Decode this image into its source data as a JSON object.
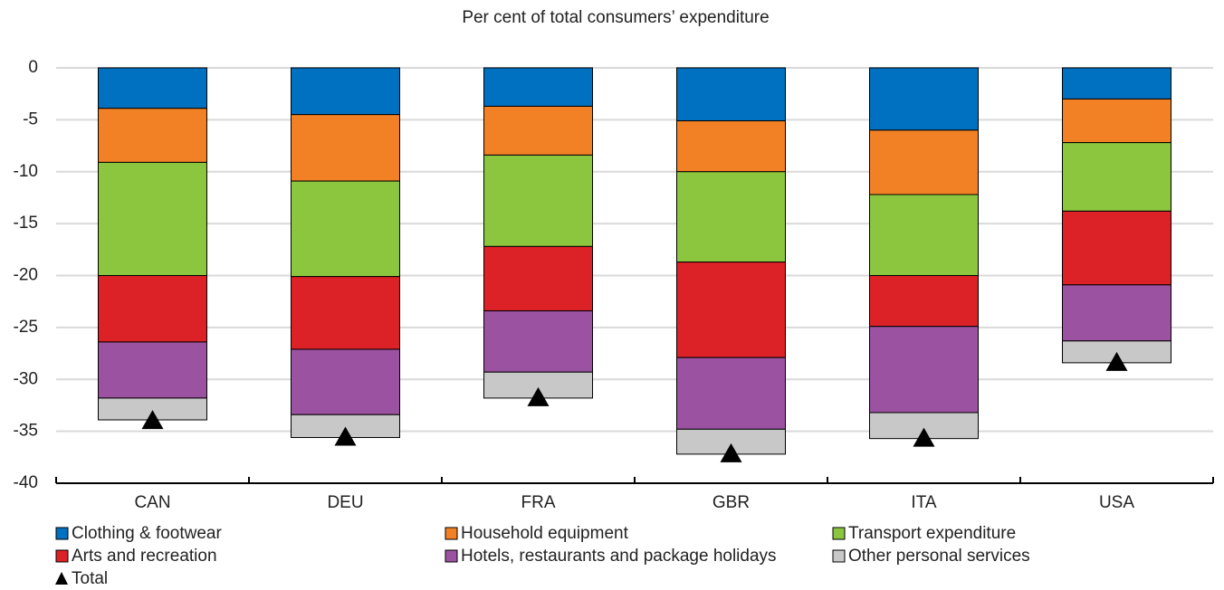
{
  "chart_data": {
    "type": "bar",
    "stacked": true,
    "title": "Per cent of total consumers’ expenditure",
    "categories": [
      "CAN",
      "DEU",
      "FRA",
      "GBR",
      "ITA",
      "USA"
    ],
    "series": [
      {
        "name": "Clothing & footwear",
        "color": "#0070c0",
        "values": [
          -3.9,
          -4.5,
          -3.7,
          -5.1,
          -6.0,
          -3.0
        ]
      },
      {
        "name": "Household equipment",
        "color": "#f28125",
        "values": [
          -5.2,
          -6.4,
          -4.7,
          -4.9,
          -6.2,
          -4.2
        ]
      },
      {
        "name": "Transport expenditure",
        "color": "#8cc63f",
        "values": [
          -10.9,
          -9.2,
          -8.8,
          -8.7,
          -7.8,
          -6.6
        ]
      },
      {
        "name": "Arts and recreation",
        "color": "#dc2127",
        "values": [
          -6.4,
          -7.0,
          -6.2,
          -9.2,
          -4.9,
          -7.1
        ]
      },
      {
        "name": "Hotels, restaurants and package holidays",
        "color": "#9b52a0",
        "values": [
          -5.4,
          -6.3,
          -5.9,
          -6.9,
          -8.3,
          -5.4
        ]
      },
      {
        "name": "Other personal services",
        "color": "#c8c8c8",
        "values": [
          -2.1,
          -2.2,
          -2.5,
          -2.4,
          -2.5,
          -2.1
        ]
      }
    ],
    "total": {
      "name": "Total",
      "color": "#000000",
      "values": [
        -34.0,
        -35.6,
        -31.8,
        -37.2,
        -35.7,
        -28.4
      ]
    },
    "ylim": [
      -40,
      0
    ],
    "yticks": [
      0,
      -5,
      -10,
      -15,
      -20,
      -25,
      -30,
      -35,
      -40
    ],
    "grid": true
  }
}
